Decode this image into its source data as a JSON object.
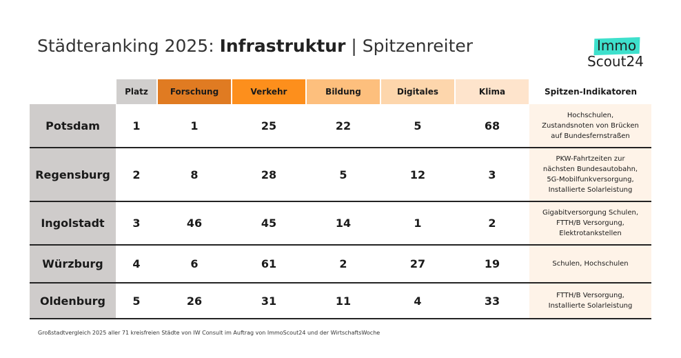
{
  "title": {
    "prefix": "Städteranking 2025: ",
    "bold": "Infrastruktur",
    "suffix": " | Spitzenreiter"
  },
  "logo": {
    "line1": "Immo",
    "line2": "Scout24",
    "accent": "#3ee0cc"
  },
  "columns": [
    {
      "label": "Platz",
      "color": "#d0cecd"
    },
    {
      "label": "Forschung",
      "color": "#e07b22"
    },
    {
      "label": "Verkehr",
      "color": "#fd8f1c"
    },
    {
      "label": "Bildung",
      "color": "#fdbf7d"
    },
    {
      "label": "Digitales",
      "color": "#fdd6ac"
    },
    {
      "label": "Klima",
      "color": "#fee4cc"
    },
    {
      "label": "Spitzen-Indikatoren",
      "color": "#ffffff"
    }
  ],
  "rows": [
    {
      "city": "Potsdam",
      "values": [
        "1",
        "1",
        "25",
        "22",
        "5",
        "68"
      ],
      "indicators": [
        "Hochschulen,",
        "Zustandsnoten von Brücken",
        "auf Bundesfernstraßen"
      ]
    },
    {
      "city": "Regensburg",
      "values": [
        "2",
        "8",
        "28",
        "5",
        "12",
        "3"
      ],
      "indicators": [
        "PKW-Fahrtzeiten zur",
        "nächsten Bundesautobahn,",
        "5G-Mobilfunkversorgung,",
        "Installierte Solarleistung"
      ]
    },
    {
      "city": "Ingolstadt",
      "values": [
        "3",
        "46",
        "45",
        "14",
        "1",
        "2"
      ],
      "indicators": [
        "Gigabitversorgung Schulen,",
        "FTTH/B Versorgung,",
        "Elektrotankstellen"
      ]
    },
    {
      "city": "Würzburg",
      "values": [
        "4",
        "6",
        "61",
        "2",
        "27",
        "19"
      ],
      "indicators": [
        "Schulen, Hochschulen"
      ]
    },
    {
      "city": "Oldenburg",
      "values": [
        "5",
        "26",
        "31",
        "11",
        "4",
        "33"
      ],
      "indicators": [
        "FTTH/B Versorgung,",
        "Installierte Solarleistung"
      ]
    }
  ],
  "footnote": "Großstadtvergleich 2025 aller 71 kreisfreien Städte von IW Consult im Auftrag von ImmoScout24 und der WirtschaftsWoche"
}
